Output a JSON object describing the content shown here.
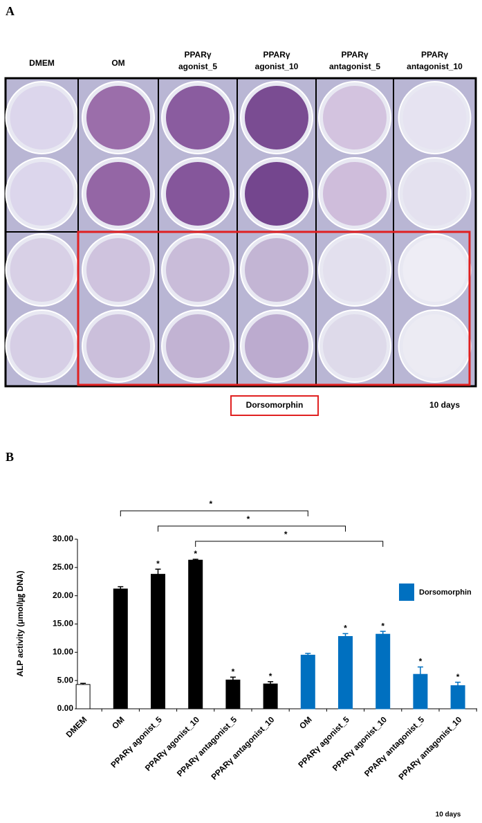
{
  "panel_a": {
    "label": "A",
    "columns": [
      [
        "DMEM"
      ],
      [
        "OM"
      ],
      [
        "PPARγ",
        "agonist_5"
      ],
      [
        "PPARγ",
        "agonist_10"
      ],
      [
        "PPARγ",
        "antagonist_5"
      ],
      [
        "PPARγ",
        "antagonist_10"
      ]
    ],
    "box_label": "Dorsomorphin",
    "time": "10 days"
  },
  "chart_data": {
    "type": "bar",
    "panel_label": "B",
    "y_label": "ALP activity (μmol/㎍ DNA)",
    "categories": [
      "DMEM",
      "OM",
      "PPARγ agonist_5",
      "PPARγ agonist_10",
      "PPARγ antagonist_5",
      "PPARγ antagonist_10",
      "OM",
      "PPARγ agonist_5",
      "PPARγ agonist_10",
      "PPARγ antagonist_5",
      "PPARγ antagonist_10"
    ],
    "series": [
      {
        "values": [
          4.3,
          21.2,
          23.8,
          26.3,
          5.1,
          4.4,
          9.5,
          12.8,
          13.2,
          6.1,
          4.1
        ],
        "errors": [
          0.2,
          0.4,
          0.9,
          0.15,
          0.5,
          0.4,
          0.3,
          0.5,
          0.5,
          1.3,
          0.6
        ],
        "colors": [
          "#ffffff",
          "#000000",
          "#000000",
          "#000000",
          "#000000",
          "#000000",
          "#0070c0",
          "#0070c0",
          "#0070c0",
          "#0070c0",
          "#0070c0"
        ],
        "stars": [
          null,
          null,
          "*",
          "*",
          "*",
          "*",
          null,
          "*",
          "*",
          "*",
          "*"
        ]
      }
    ],
    "brackets": [
      {
        "from": 1,
        "to": 6,
        "label": "*"
      },
      {
        "from": 2,
        "to": 7,
        "label": "*"
      },
      {
        "from": 3,
        "to": 8,
        "label": "*"
      }
    ],
    "legend": {
      "label": "Dorsomorphin",
      "color": "#0070c0"
    },
    "footnote": "10 days",
    "ylim": [
      0,
      30
    ],
    "yticks": [
      {
        "value": 0,
        "label": "0.00"
      },
      {
        "value": 5,
        "label": "5.00"
      },
      {
        "value": 10,
        "label": "10.00"
      },
      {
        "value": 15,
        "label": "15.00"
      },
      {
        "value": 20,
        "label": "20.00"
      },
      {
        "value": 25,
        "label": "25.00"
      },
      {
        "value": 30,
        "label": "30.00"
      }
    ]
  }
}
